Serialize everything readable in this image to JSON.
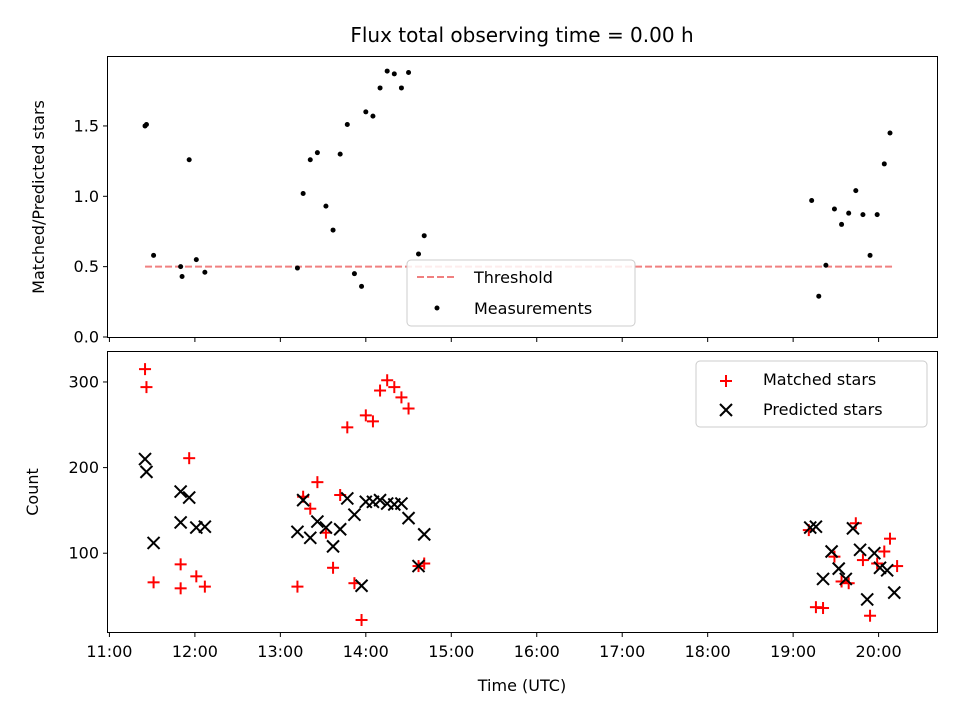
{
  "chart_data": [
    {
      "type": "scatter",
      "title": "Flux total observing time = 0.00 h",
      "xlabel": "",
      "ylabel": "Matched/Predicted stars",
      "xlim": [
        "10:59",
        "20:41"
      ],
      "ylim": [
        0,
        1.99
      ],
      "yticks": [
        0.0,
        0.5,
        1.0,
        1.5
      ],
      "ytick_labels": [
        "0.0",
        "0.5",
        "1.0",
        "1.5"
      ],
      "grid": false,
      "legend_position": "bottom-center",
      "colors": {
        "measurements": "#000000",
        "threshold": "#f08080"
      },
      "series": [
        {
          "name": "Threshold",
          "kind": "dashed-line",
          "x": [
            "11:25",
            "20:10"
          ],
          "y": [
            0.5,
            0.5
          ]
        },
        {
          "name": "Measurements",
          "kind": "points",
          "x": [
            "11:25",
            "11:26",
            "11:31",
            "11:50",
            "11:51",
            "11:56",
            "12:01",
            "12:07",
            "13:12",
            "13:16",
            "13:21",
            "13:26",
            "13:32",
            "13:37",
            "13:42",
            "13:47",
            "13:52",
            "13:57",
            "14:00",
            "14:05",
            "14:10",
            "14:15",
            "14:20",
            "14:25",
            "14:30",
            "14:37",
            "14:41",
            "19:13",
            "19:18",
            "19:23",
            "19:29",
            "19:34",
            "19:39",
            "19:44",
            "19:49",
            "19:54",
            "19:59",
            "20:04",
            "20:08"
          ],
          "y": [
            1.5,
            1.51,
            0.58,
            0.5,
            0.43,
            1.26,
            0.55,
            0.46,
            0.49,
            1.02,
            1.26,
            1.31,
            0.93,
            0.76,
            1.3,
            1.51,
            0.45,
            0.36,
            1.6,
            1.57,
            1.77,
            1.89,
            1.87,
            1.77,
            1.88,
            0.59,
            0.72,
            0.97,
            0.29,
            0.51,
            0.91,
            0.8,
            0.88,
            1.04,
            0.87,
            0.58,
            0.87,
            1.23,
            1.45
          ]
        }
      ]
    },
    {
      "type": "scatter",
      "title": "",
      "xlabel": "Time (UTC)",
      "ylabel": "Count",
      "xlim": [
        "10:59",
        "20:41"
      ],
      "ylim": [
        8,
        335
      ],
      "yticks": [
        100,
        200,
        300
      ],
      "ytick_labels": [
        "100",
        "200",
        "300"
      ],
      "xticks": [
        "11:00",
        "12:00",
        "13:00",
        "14:00",
        "15:00",
        "16:00",
        "17:00",
        "18:00",
        "19:00",
        "20:00"
      ],
      "xtick_labels": [
        "11:00",
        "12:00",
        "13:00",
        "14:00",
        "15:00",
        "16:00",
        "17:00",
        "18:00",
        "19:00",
        "20:00"
      ],
      "grid": false,
      "legend_position": "top-right",
      "colors": {
        "matched": "#ff0000",
        "predicted": "#000000"
      },
      "series": [
        {
          "name": "Matched stars",
          "kind": "plus",
          "x": [
            "11:25",
            "11:26",
            "11:31",
            "11:50",
            "11:50",
            "11:56",
            "12:01",
            "12:07",
            "13:12",
            "13:16",
            "13:21",
            "13:26",
            "13:32",
            "13:37",
            "13:42",
            "13:47",
            "13:52",
            "13:57",
            "14:00",
            "14:05",
            "14:10",
            "14:15",
            "14:20",
            "14:25",
            "14:30",
            "14:37",
            "14:41",
            "19:11",
            "19:16",
            "19:21",
            "19:29",
            "19:34",
            "19:39",
            "19:44",
            "19:49",
            "19:54",
            "19:59",
            "20:04",
            "20:08",
            "20:13"
          ],
          "y": [
            315,
            294,
            66,
            59,
            87,
            211,
            73,
            61,
            61,
            166,
            152,
            183,
            124,
            83,
            168,
            247,
            65,
            22,
            261,
            254,
            290,
            302,
            294,
            282,
            269,
            85,
            88,
            127,
            37,
            36,
            96,
            67,
            65,
            135,
            92,
            27,
            88,
            102,
            117,
            85
          ]
        },
        {
          "name": "Predicted stars",
          "kind": "x",
          "x": [
            "11:25",
            "11:26",
            "11:31",
            "11:50",
            "11:50",
            "11:56",
            "12:01",
            "12:07",
            "13:12",
            "13:16",
            "13:21",
            "13:26",
            "13:32",
            "13:37",
            "13:42",
            "13:47",
            "13:52",
            "13:57",
            "14:00",
            "14:05",
            "14:10",
            "14:15",
            "14:20",
            "14:25",
            "14:30",
            "14:37",
            "14:41",
            "19:12",
            "19:16",
            "19:21",
            "19:27",
            "19:32",
            "19:37",
            "19:42",
            "19:47",
            "19:52",
            "19:57",
            "20:01",
            "20:06",
            "20:11"
          ],
          "y": [
            210,
            195,
            112,
            172,
            136,
            165,
            130,
            131,
            125,
            162,
            118,
            137,
            130,
            108,
            128,
            164,
            145,
            62,
            160,
            160,
            162,
            158,
            157,
            158,
            141,
            85,
            122,
            130,
            131,
            70,
            102,
            82,
            70,
            129,
            104,
            46,
            100,
            83,
            80,
            54
          ]
        }
      ]
    }
  ]
}
